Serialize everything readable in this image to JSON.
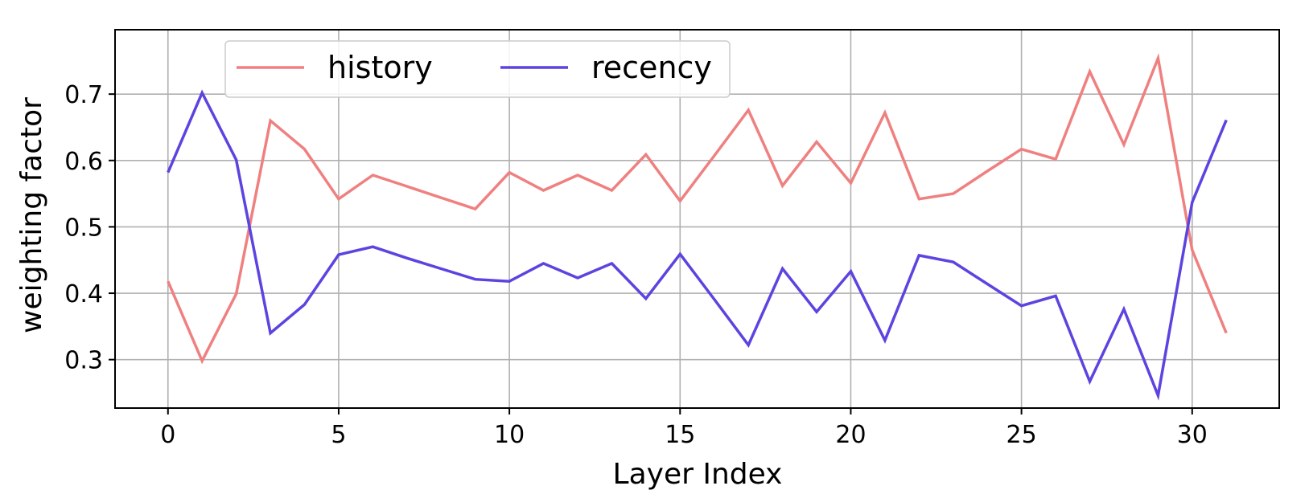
{
  "chart_data": {
    "type": "line",
    "title": "",
    "xlabel": "Layer Index",
    "ylabel": "weighting factor",
    "xlim": [
      -1.55,
      32.55
    ],
    "ylim": [
      0.227,
      0.797
    ],
    "xticks": [
      0,
      5,
      10,
      15,
      20,
      25,
      30
    ],
    "yticks": [
      0.3,
      0.4,
      0.5,
      0.6,
      0.7
    ],
    "xtick_labels": [
      "0",
      "5",
      "10",
      "15",
      "20",
      "25",
      "30"
    ],
    "ytick_labels": [
      "0.3",
      "0.4",
      "0.5",
      "0.6",
      "0.7"
    ],
    "grid": true,
    "legend_position": "upper-left",
    "x": [
      0,
      1,
      2,
      3,
      4,
      5,
      6,
      7,
      8,
      9,
      10,
      11,
      12,
      13,
      14,
      15,
      16,
      17,
      18,
      19,
      20,
      21,
      22,
      23,
      24,
      25,
      26,
      27,
      28,
      29,
      30,
      31
    ],
    "series": [
      {
        "name": "history",
        "color": "#f08080",
        "values": [
          0.418,
          0.298,
          0.399,
          0.66,
          0.617,
          0.542,
          0.578,
          0.561,
          0.544,
          0.527,
          0.582,
          0.555,
          0.578,
          0.555,
          0.609,
          0.539,
          0.607,
          0.676,
          0.562,
          0.628,
          0.566,
          0.672,
          0.542,
          0.55,
          0.584,
          0.617,
          0.602,
          0.734,
          0.624,
          0.754,
          0.465,
          0.34
        ]
      },
      {
        "name": "recency",
        "color": "#5b44e0",
        "values": [
          0.582,
          0.702,
          0.601,
          0.34,
          0.383,
          0.458,
          0.47,
          0.453,
          0.437,
          0.421,
          0.418,
          0.445,
          0.423,
          0.445,
          0.392,
          0.459,
          0.391,
          0.322,
          0.437,
          0.372,
          0.433,
          0.329,
          0.457,
          0.447,
          0.414,
          0.381,
          0.396,
          0.267,
          0.376,
          0.246,
          0.537,
          0.661
        ]
      }
    ]
  }
}
